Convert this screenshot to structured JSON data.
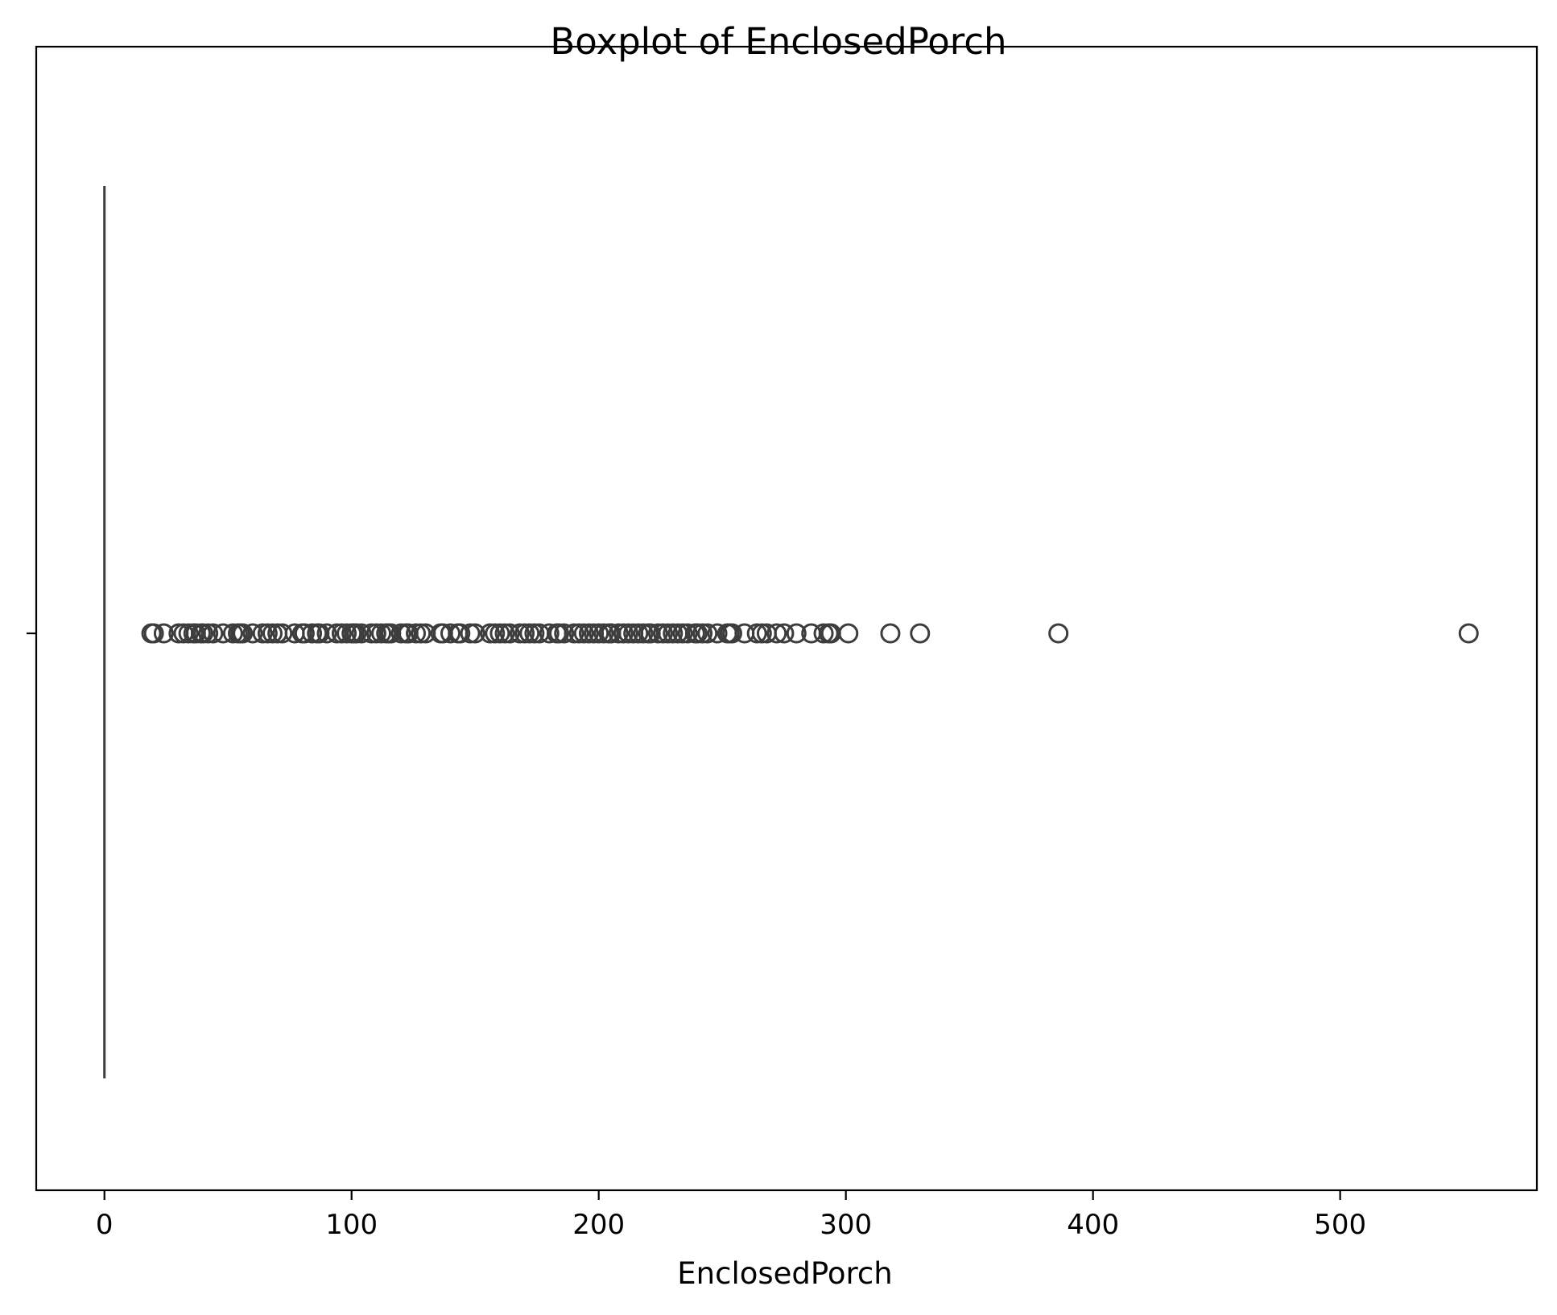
{
  "chart_data": {
    "type": "boxplot",
    "orientation": "horizontal",
    "title": "Boxplot of EnclosedPorch",
    "xlabel": "EnclosedPorch",
    "ylabel": "",
    "xlim": [
      -27.6,
      579.6
    ],
    "xticks": [
      0,
      100,
      200,
      300,
      400,
      500
    ],
    "xtick_labels": [
      "0",
      "100",
      "200",
      "300",
      "400",
      "500"
    ],
    "grid": false,
    "legend": "none",
    "colors": {
      "box": "#3d3d3d",
      "outlier_edge": "#3d3d3d",
      "axes": "#000000"
    },
    "box": {
      "whisker_low": 0,
      "q1": 0,
      "median": 0,
      "q3": 0,
      "whisker_high": 0
    },
    "outliers": [
      19,
      20,
      24,
      30,
      32,
      34,
      36,
      37,
      39,
      40,
      42,
      44,
      48,
      52,
      54,
      55,
      56,
      60,
      64,
      66,
      68,
      70,
      72,
      77,
      80,
      81,
      84,
      86,
      87,
      90,
      94,
      96,
      98,
      100,
      101,
      102,
      104,
      108,
      110,
      112,
      114,
      115,
      116,
      120,
      122,
      123,
      126,
      128,
      130,
      136,
      137,
      140,
      143,
      144,
      148,
      150,
      156,
      158,
      160,
      162,
      164,
      168,
      170,
      172,
      174,
      176,
      180,
      183,
      184,
      186,
      190,
      192,
      194,
      196,
      198,
      200,
      202,
      204,
      205,
      208,
      210,
      212,
      214,
      216,
      218,
      220,
      221,
      224,
      226,
      228,
      230,
      232,
      234,
      236,
      239,
      240,
      242,
      244,
      248,
      252,
      253,
      254,
      259,
      264,
      266,
      268,
      272,
      275,
      280,
      286,
      291,
      293,
      294,
      301,
      318,
      330,
      386,
      552
    ]
  }
}
